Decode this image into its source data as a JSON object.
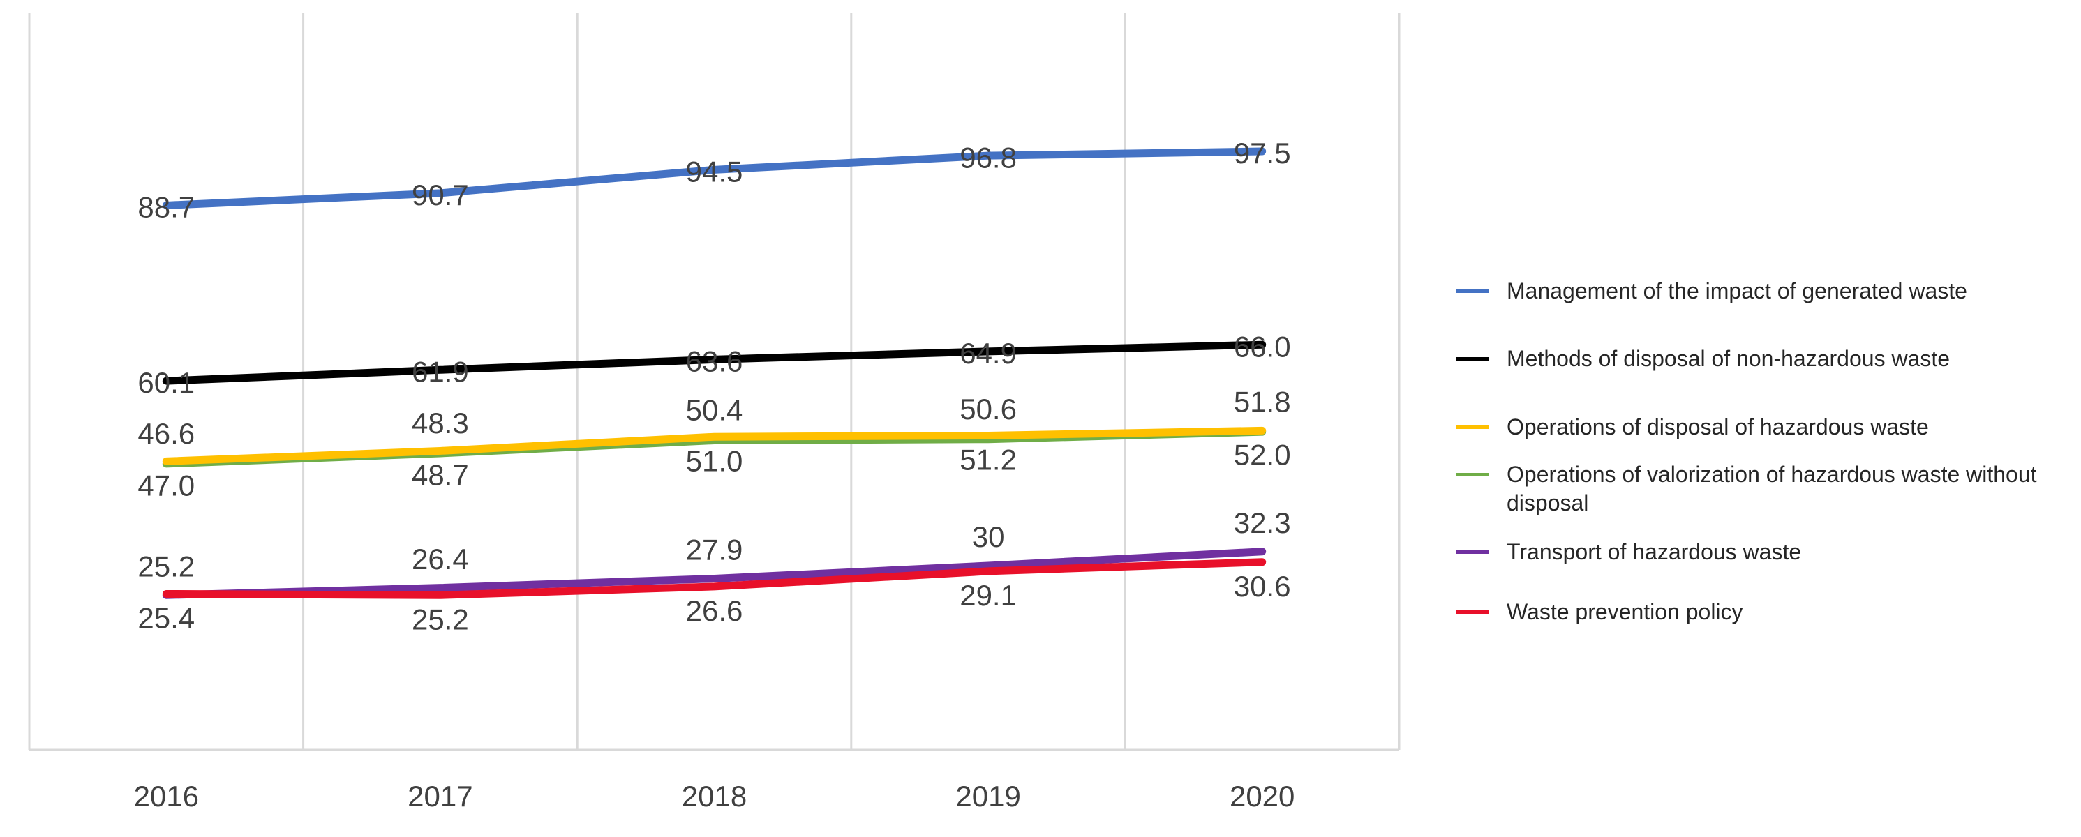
{
  "chart_data": {
    "type": "line",
    "categories": [
      "2016",
      "2017",
      "2018",
      "2019",
      "2020"
    ],
    "ylim": [
      0,
      120
    ],
    "grid": true,
    "legend": "right",
    "series": [
      {
        "name": "Management of the impact of generated waste",
        "color": "#4472c4",
        "values": [
          88.7,
          90.7,
          94.5,
          96.8,
          97.5
        ]
      },
      {
        "name": "Methods of disposal of non-hazardous waste",
        "color": "#000000",
        "values": [
          60.1,
          61.9,
          63.6,
          64.9,
          66.0
        ],
        "value_labels": [
          "60.1",
          "61.9",
          "63.6",
          "64.9",
          "66.0"
        ]
      },
      {
        "name": "Operations of disposal of hazardous waste",
        "color": "#ffc000",
        "values": [
          47.0,
          48.7,
          51.0,
          51.2,
          52.0
        ],
        "value_labels": [
          "47.0",
          "48.7",
          "51.0",
          "51.2",
          "52.0"
        ]
      },
      {
        "name": "Operations of valorization of hazardous waste without disposal",
        "color": "#70ad47",
        "values": [
          46.6,
          48.3,
          50.4,
          50.6,
          51.8
        ]
      },
      {
        "name": "Transport of hazardous waste",
        "color": "#7030a0",
        "values": [
          25.2,
          26.4,
          27.9,
          30.0,
          32.3
        ]
      },
      {
        "name": "Waste prevention policy",
        "color": "#e8102a",
        "values": [
          25.4,
          25.2,
          26.6,
          29.1,
          30.6
        ]
      }
    ]
  }
}
